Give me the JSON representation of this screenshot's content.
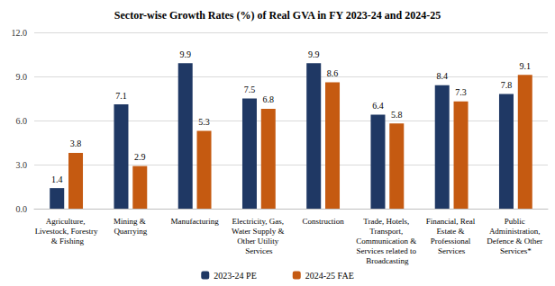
{
  "chart_data": {
    "type": "bar",
    "title": "Sector-wise Growth Rates (%) of Real GVA in FY 2023-24 and 2024-25",
    "categories": [
      "Agriculture, Livestock, Forestry & Fishing",
      "Mining & Quarrying",
      "Manufacturing",
      "Electricity, Gas, Water Supply & Other Utility Services",
      "Construction",
      "Trade, Hotels, Transport, Communication & Services related to Broadcasting",
      "Financial, Real Estate & Professional Services",
      "Public Administration, Defence & Other Services*"
    ],
    "series": [
      {
        "name": "2023-24 PE",
        "color": "#1f3864",
        "values": [
          1.4,
          7.1,
          9.9,
          7.5,
          9.9,
          6.4,
          8.4,
          7.8
        ]
      },
      {
        "name": "2024-25 FAE",
        "color": "#c55a11",
        "values": [
          3.8,
          2.9,
          5.3,
          6.8,
          8.6,
          5.8,
          7.3,
          9.1
        ]
      }
    ],
    "ylim": [
      0,
      12
    ],
    "yticks": [
      {
        "value": 0,
        "label": "0.0"
      },
      {
        "value": 3,
        "label": "3.0"
      },
      {
        "value": 6,
        "label": "6.0"
      },
      {
        "value": 9,
        "label": "9.0"
      },
      {
        "value": 12,
        "label": "12.0"
      }
    ],
    "grid": true,
    "legend": "bottom",
    "data_labels": true
  }
}
